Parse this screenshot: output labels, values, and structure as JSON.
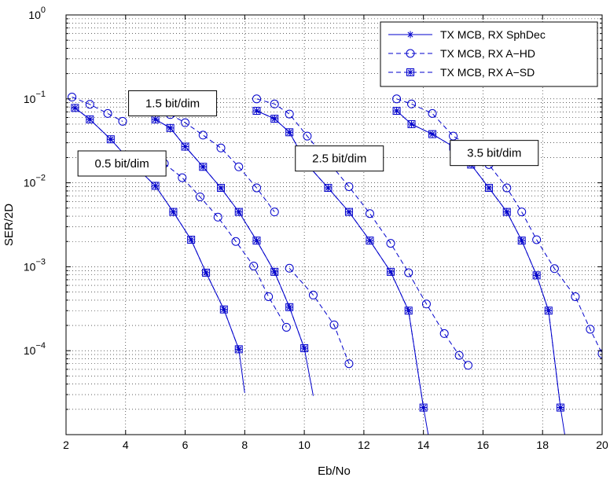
{
  "chart_data": {
    "type": "line",
    "xlabel": "Eb/No",
    "ylabel": "SER/2D",
    "xlim": [
      2,
      20
    ],
    "ylim": [
      1e-05,
      1
    ],
    "yscale": "log",
    "grid": "dotted major and minor",
    "legend_position": "top-right",
    "xticks": [
      "2",
      "4",
      "6",
      "8",
      "10",
      "12",
      "14",
      "16",
      "18",
      "20"
    ],
    "yticks": [
      {
        "value": 1,
        "base": "10",
        "exp": "0"
      },
      {
        "value": 0.1,
        "base": "10",
        "exp": "−1"
      },
      {
        "value": 0.01,
        "base": "10",
        "exp": "−2"
      },
      {
        "value": 0.001,
        "base": "10",
        "exp": "−3"
      },
      {
        "value": 0.0001,
        "base": "10",
        "exp": "−4"
      }
    ],
    "colors": {
      "series": "#0000cc",
      "grid": "#000000"
    },
    "legend": [
      {
        "label": "TX MCB, RX SphDec",
        "line": "solid",
        "marker": "star"
      },
      {
        "label": "TX MCB, RX A−HD",
        "line": "dashed",
        "marker": "circle"
      },
      {
        "label": "TX MCB, RX A−SD",
        "line": "dashed",
        "marker": "boxed-star"
      }
    ],
    "annotations": [
      {
        "text": "0.5 bit/dim",
        "x": 2.4,
        "y": 0.024
      },
      {
        "text": "1.5 bit/dim",
        "x": 4.1,
        "y": 0.125
      },
      {
        "text": "2.5 bit/dim",
        "x": 9.7,
        "y": 0.0275
      },
      {
        "text": "3.5 bit/dim",
        "x": 14.9,
        "y": 0.032
      }
    ],
    "series": [
      {
        "group": "0.5 bit/dim",
        "style": "sphdec",
        "x": [
          2.3,
          2.8,
          3.5,
          4.3,
          5.0,
          5.6,
          6.2,
          6.7,
          7.3,
          7.8,
          8.0
        ],
        "y": [
          0.078,
          0.057,
          0.033,
          0.016,
          0.0092,
          0.0045,
          0.0021,
          0.00085,
          0.00031,
          0.000104,
          3.15e-05
        ]
      },
      {
        "group": "0.5 bit/dim",
        "style": "ahd",
        "x": [
          2.2,
          2.8,
          3.4,
          3.9
        ],
        "y": [
          0.105,
          0.086,
          0.067,
          0.054
        ]
      },
      {
        "group": "0.5 bit/dim",
        "style": "asd",
        "x": [
          2.3,
          2.8,
          3.5,
          4.3,
          5.0,
          5.6,
          6.2,
          6.7,
          7.3,
          7.8
        ],
        "y": [
          0.078,
          0.057,
          0.033,
          0.016,
          0.0092,
          0.0045,
          0.0021,
          0.00085,
          0.00031,
          0.000104
        ]
      },
      {
        "group": "1.5 bit/dim",
        "style": "sphdec",
        "x": [
          5.0,
          5.5,
          6.0,
          6.6,
          7.2,
          7.8,
          8.4,
          9.0,
          9.5,
          10.0,
          10.3
        ],
        "y": [
          0.057,
          0.045,
          0.027,
          0.0155,
          0.0087,
          0.0045,
          0.00205,
          0.00087,
          0.00033,
          0.000107,
          2.9e-05
        ]
      },
      {
        "group": "1.5 bit/dim",
        "style": "ahd",
        "x": [
          5.5,
          6.0,
          6.6,
          7.2,
          7.8,
          8.4,
          9.0
        ],
        "y": [
          0.065,
          0.052,
          0.037,
          0.026,
          0.0155,
          0.0087,
          0.0045
        ]
      },
      {
        "group": "1.5 bit/dim",
        "style": "ahd",
        "x": [
          5.3,
          5.9,
          6.5,
          7.1,
          7.7,
          8.3,
          8.8,
          9.4
        ],
        "y": [
          0.017,
          0.0115,
          0.0068,
          0.0039,
          0.002,
          0.00102,
          0.00044,
          0.00019
        ]
      },
      {
        "group": "1.5 bit/dim",
        "style": "asd",
        "x": [
          5.0,
          5.5,
          6.0,
          6.6,
          7.2,
          7.8,
          8.4,
          9.0,
          9.5,
          10.0
        ],
        "y": [
          0.057,
          0.045,
          0.027,
          0.0155,
          0.0087,
          0.0045,
          0.00205,
          0.00087,
          0.00033,
          0.000107
        ]
      },
      {
        "group": "2.5 bit/dim",
        "style": "sphdec",
        "x": [
          8.4,
          9.0,
          9.5,
          10.1,
          10.8,
          11.5,
          12.2,
          12.9,
          13.5,
          14.0,
          14.3
        ],
        "y": [
          0.072,
          0.058,
          0.04,
          0.0165,
          0.0087,
          0.0045,
          0.00205,
          0.00087,
          0.0003,
          2.1e-05,
          5.3e-06
        ]
      },
      {
        "group": "2.5 bit/dim",
        "style": "ahd",
        "x": [
          8.4,
          9.0,
          9.5,
          10.1,
          10.8,
          11.5,
          12.2,
          12.9,
          13.5,
          14.1,
          14.7,
          15.2,
          15.5
        ],
        "y": [
          0.1,
          0.087,
          0.066,
          0.036,
          0.018,
          0.009,
          0.0043,
          0.0019,
          0.00085,
          0.00036,
          0.00016,
          8.8e-05,
          6.7e-05
        ]
      },
      {
        "group": "2.5 bit/dim",
        "style": "ahd",
        "x": [
          9.5,
          10.3,
          11.0,
          11.5
        ],
        "y": [
          0.00096,
          0.00046,
          0.000203,
          7e-05
        ]
      },
      {
        "group": "2.5 bit/dim",
        "style": "asd",
        "x": [
          8.4,
          9.0,
          9.5,
          10.1,
          10.8,
          11.5,
          12.2,
          12.9,
          13.5,
          14.0
        ],
        "y": [
          0.072,
          0.058,
          0.04,
          0.0165,
          0.0087,
          0.0045,
          0.00205,
          0.00087,
          0.0003,
          2.1e-05
        ]
      },
      {
        "group": "3.5 bit/dim",
        "style": "sphdec",
        "x": [
          13.1,
          13.6,
          14.3,
          15.0,
          15.6,
          16.2,
          16.8,
          17.3,
          17.8,
          18.2,
          18.6,
          18.9
        ],
        "y": [
          0.072,
          0.05,
          0.038,
          0.027,
          0.0165,
          0.0087,
          0.0045,
          0.00205,
          0.00079,
          0.0003,
          2.1e-05,
          4.5e-06
        ]
      },
      {
        "group": "3.5 bit/dim",
        "style": "ahd",
        "x": [
          13.1,
          13.6,
          14.3,
          15.0,
          15.6,
          16.2,
          16.8,
          17.3,
          17.8,
          18.4,
          19.1,
          19.6,
          20.0
        ],
        "y": [
          0.1,
          0.087,
          0.067,
          0.036,
          0.027,
          0.0165,
          0.0087,
          0.0045,
          0.0021,
          0.00095,
          0.00044,
          0.00018,
          9.2e-05
        ]
      },
      {
        "group": "3.5 bit/dim",
        "style": "asd",
        "x": [
          13.1,
          13.6,
          14.3,
          15.0,
          15.6,
          16.2,
          16.8,
          17.3,
          17.8,
          18.2,
          18.6
        ],
        "y": [
          0.072,
          0.05,
          0.038,
          0.027,
          0.0165,
          0.0087,
          0.0045,
          0.00205,
          0.00079,
          0.0003,
          2.1e-05
        ]
      }
    ]
  }
}
